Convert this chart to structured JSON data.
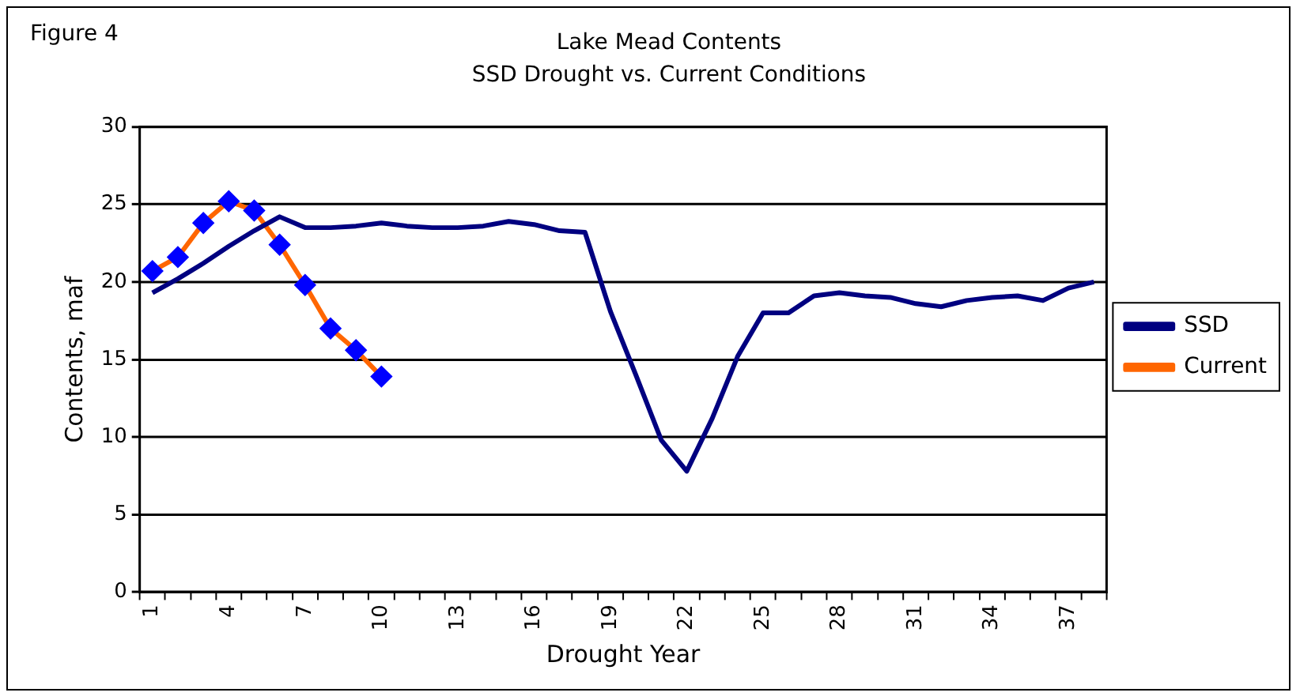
{
  "chart_data": {
    "type": "line",
    "title": "Lake Mead Contents",
    "subtitle": "SSD Drought vs. Current Conditions",
    "xlabel": "Drought Year",
    "ylabel": "Contents, maf",
    "annotations": [
      "Figure 4"
    ],
    "categories": [
      "1",
      null,
      null,
      "4",
      null,
      null,
      "7",
      null,
      null,
      "10",
      null,
      null,
      "13",
      null,
      null,
      "16",
      null,
      null,
      "19",
      null,
      null,
      "22",
      null,
      null,
      "25",
      null,
      null,
      "28",
      null,
      null,
      "31",
      null,
      null,
      "34",
      null,
      null,
      "37",
      null
    ],
    "series": [
      {
        "name": "SSD",
        "color": "#000080",
        "marker": "none",
        "values": [
          19.3,
          20.2,
          21.2,
          22.3,
          23.3,
          24.2,
          23.5,
          23.5,
          23.6,
          23.8,
          23.6,
          23.5,
          23.5,
          23.6,
          23.9,
          23.7,
          23.3,
          23.2,
          18.1,
          14.0,
          9.8,
          7.8,
          11.2,
          15.2,
          18.0,
          18.0,
          19.1,
          19.3,
          19.1,
          19.0,
          18.6,
          18.4,
          18.8,
          19.0,
          19.1,
          18.8,
          19.6,
          20.0
        ]
      },
      {
        "name": "Current",
        "color": "#ff6600",
        "colors": [
          "#0000ff",
          "#0000ff",
          "#0000ff",
          "#0000ff",
          "#0000ff",
          "#0000ff",
          "#0000ff",
          "#0000ff",
          "#0000ff",
          "#0000ff",
          null,
          null,
          null,
          null,
          null,
          null,
          null,
          null,
          null,
          null,
          null,
          null,
          null,
          null,
          null,
          null,
          null,
          null,
          null,
          null,
          null,
          null,
          null,
          null,
          null,
          null,
          null,
          null
        ],
        "marker": "diamond",
        "values": [
          20.7,
          21.6,
          23.8,
          25.2,
          24.6,
          22.4,
          19.8,
          17.0,
          15.6,
          13.9,
          null,
          null,
          null,
          null,
          null,
          null,
          null,
          null,
          null,
          null,
          null,
          null,
          null,
          null,
          null,
          null,
          null,
          null,
          null,
          null,
          null,
          null,
          null,
          null,
          null,
          null,
          null,
          null
        ]
      }
    ],
    "ylim": [
      0,
      30
    ],
    "yticks": [
      0,
      5,
      10,
      15,
      20,
      25,
      30
    ],
    "grid": "y",
    "legend": "right"
  }
}
